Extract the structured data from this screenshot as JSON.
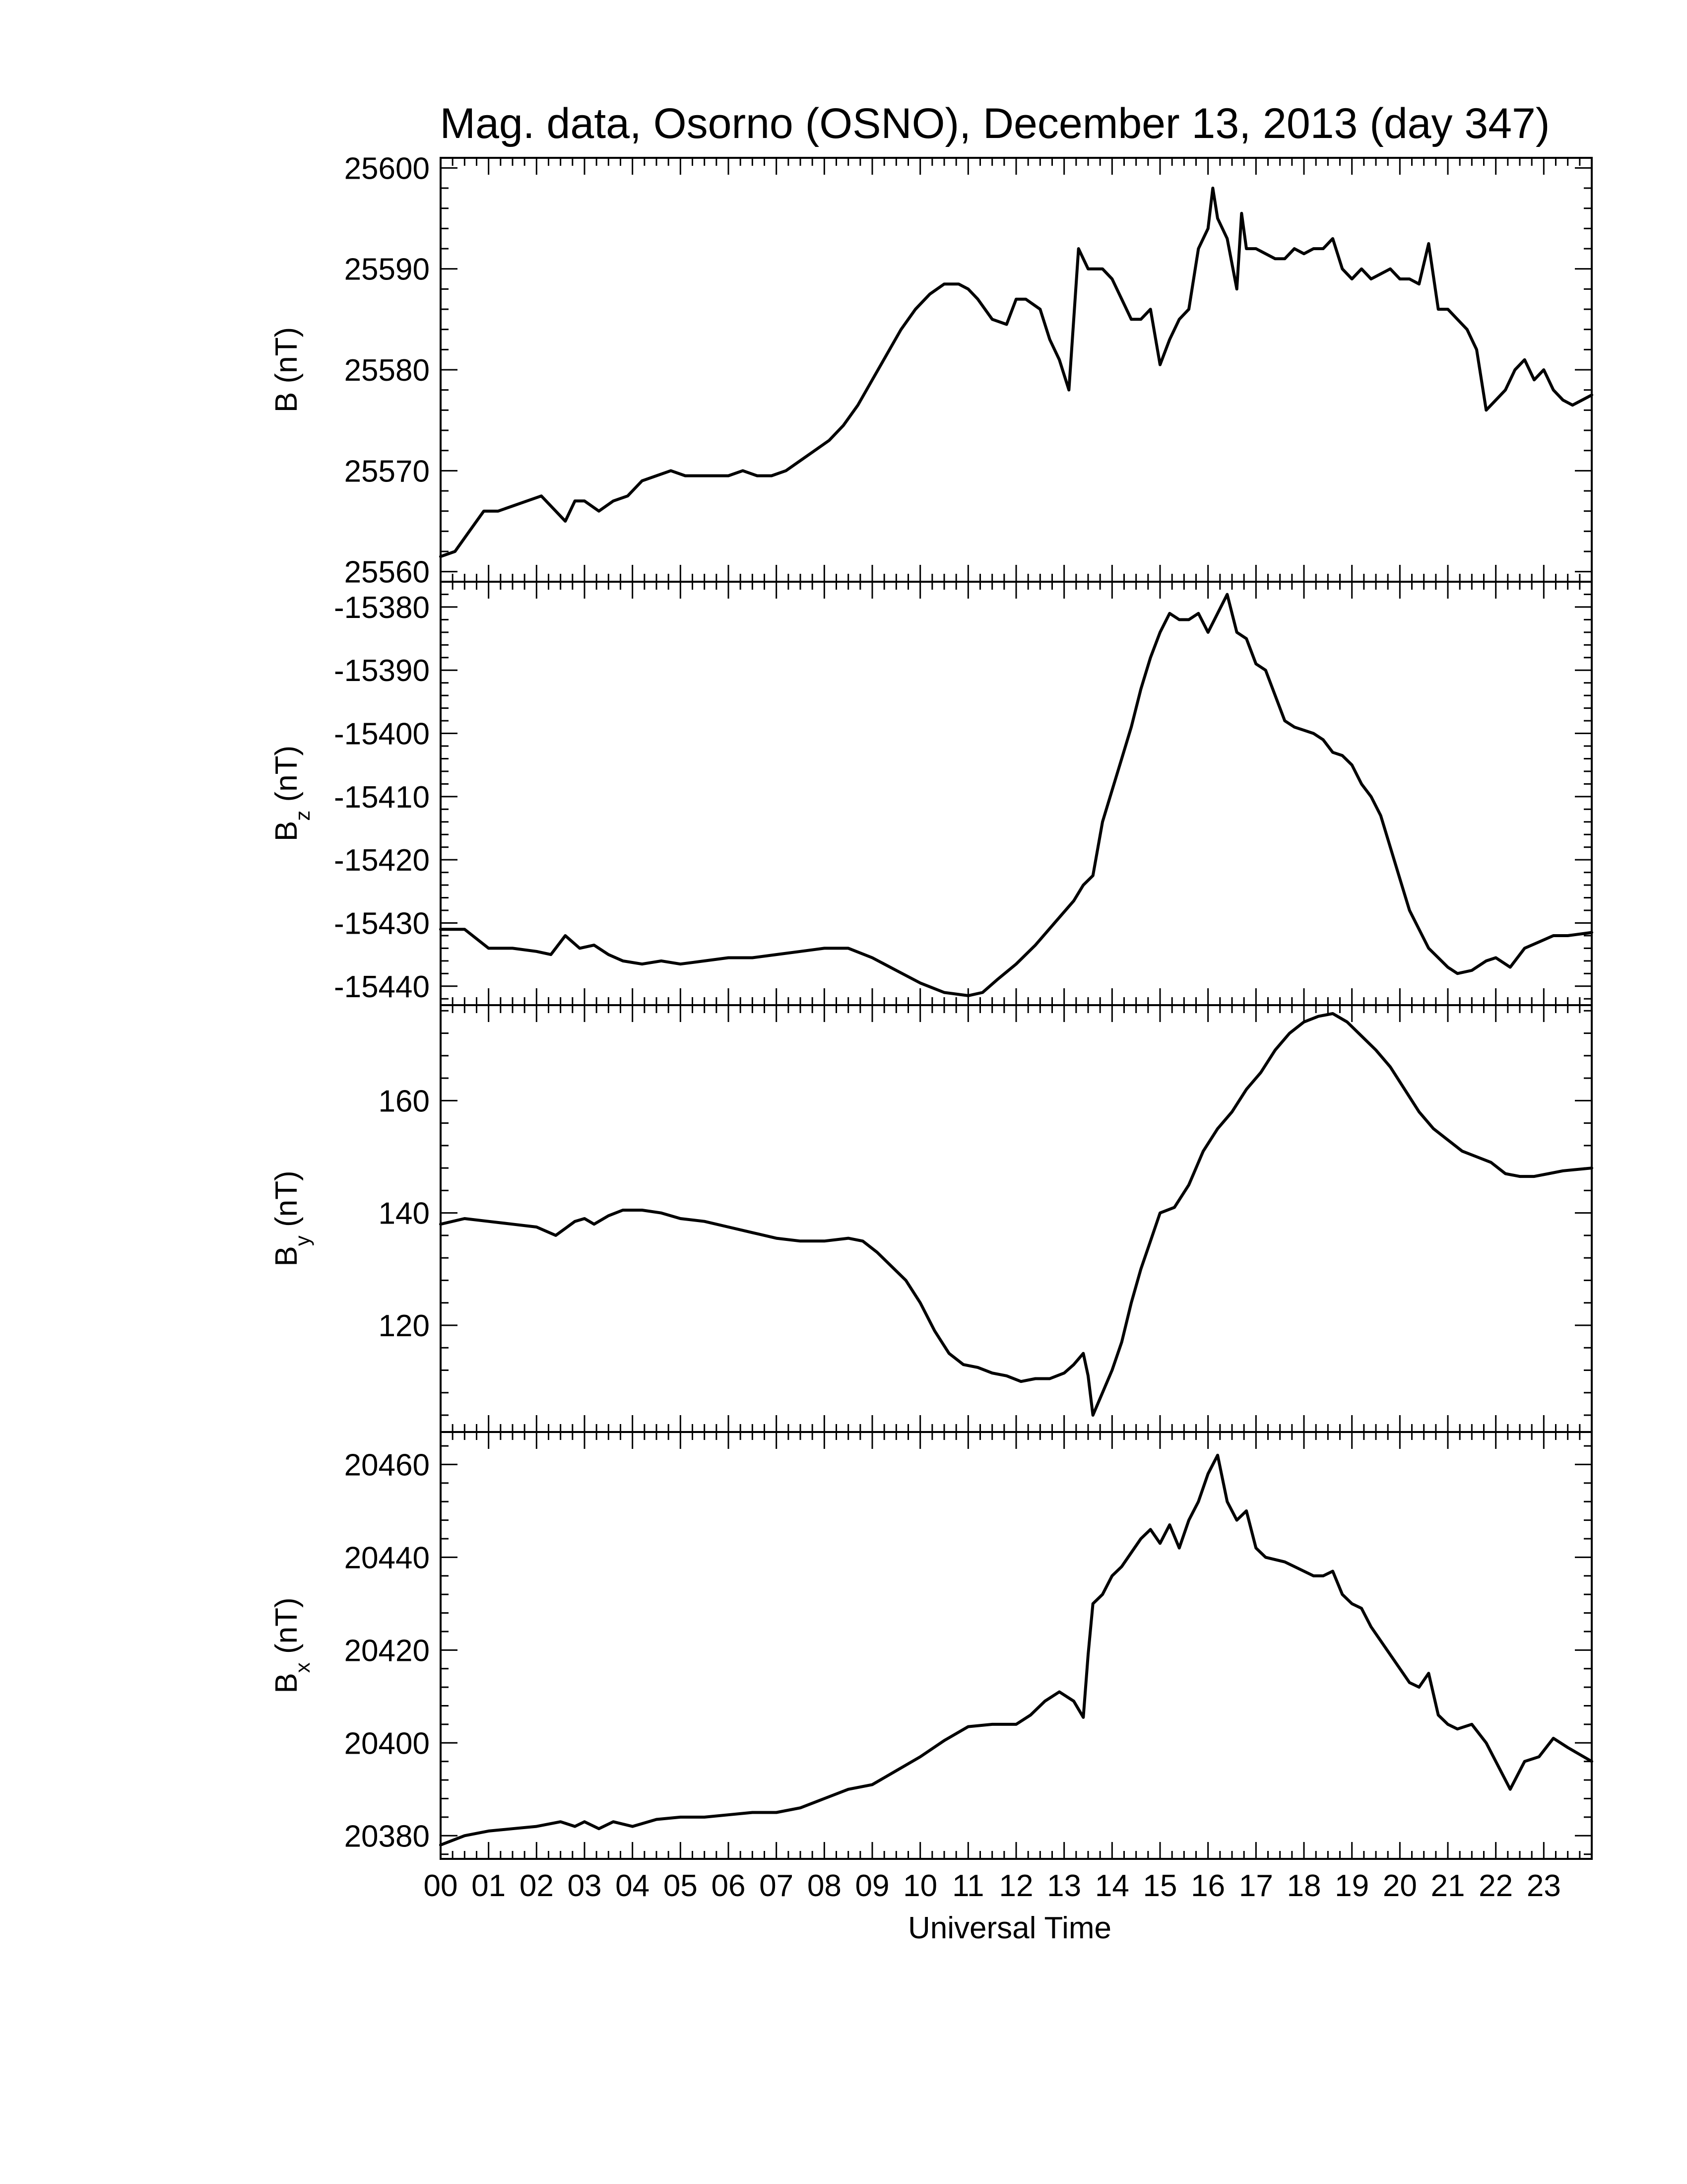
{
  "chart_data": {
    "type": "line",
    "title": "Mag. data, Osorno (OSNO), December 13, 2013 (day 347)",
    "xlabel": "Universal Time",
    "xlim": [
      0,
      24
    ],
    "x_tick_labels": [
      "00",
      "01",
      "02",
      "03",
      "04",
      "05",
      "06",
      "07",
      "08",
      "09",
      "10",
      "11",
      "12",
      "13",
      "14",
      "15",
      "16",
      "17",
      "18",
      "19",
      "20",
      "21",
      "22",
      "23"
    ],
    "colors": {
      "trace": "#000000",
      "background": "#ffffff"
    },
    "panels": [
      {
        "id": "b",
        "ylabel_main": "B",
        "ylabel_sub": "",
        "ylabel_unit": "(nT)",
        "ylim": [
          25559,
          25601
        ],
        "yticks": [
          25560,
          25570,
          25580,
          25590,
          25600
        ],
        "ytick_labels": [
          "25560",
          "25570",
          "25580",
          "25590",
          "25600"
        ],
        "series": [
          {
            "x": [
              0.0,
              0.3,
              0.6,
              0.9,
              1.2,
              1.5,
              1.8,
              2.1,
              2.4,
              2.6,
              2.8,
              3.0,
              3.3,
              3.6,
              3.9,
              4.2,
              4.5,
              4.8,
              5.1,
              5.4,
              5.7,
              6.0,
              6.3,
              6.6,
              6.9,
              7.2,
              7.5,
              7.8,
              8.1,
              8.4,
              8.7,
              9.0,
              9.3,
              9.6,
              9.9,
              10.2,
              10.5,
              10.8,
              11.0,
              11.2,
              11.5,
              11.8,
              12.0,
              12.2,
              12.5,
              12.7,
              12.9,
              13.1,
              13.3,
              13.4,
              13.5,
              13.6,
              13.8,
              14.0,
              14.2,
              14.4,
              14.6,
              14.8,
              15.0,
              15.2,
              15.4,
              15.6,
              15.8,
              16.0,
              16.1,
              16.2,
              16.4,
              16.6,
              16.7,
              16.8,
              17.0,
              17.2,
              17.4,
              17.6,
              17.8,
              18.0,
              18.2,
              18.4,
              18.6,
              18.8,
              19.0,
              19.2,
              19.4,
              19.6,
              19.8,
              20.0,
              20.2,
              20.4,
              20.6,
              20.8,
              21.0,
              21.2,
              21.4,
              21.6,
              21.8,
              22.0,
              22.2,
              22.4,
              22.6,
              22.8,
              23.0,
              23.2,
              23.4,
              23.6,
              24.0
            ],
            "y": [
              25561.5,
              25562,
              25564,
              25566,
              25566,
              25566.5,
              25567,
              25567.5,
              25566,
              25565,
              25567,
              25567,
              25566,
              25567,
              25567.5,
              25569,
              25569.5,
              25570,
              25569.5,
              25569.5,
              25569.5,
              25569.5,
              25570,
              25569.5,
              25569.5,
              25570,
              25571,
              25572,
              25573,
              25574.5,
              25576.5,
              25579,
              25581.5,
              25584,
              25586,
              25587.5,
              25588.5,
              25588.5,
              25588,
              25587,
              25585,
              25584.5,
              25587,
              25587,
              25586,
              25583,
              25581,
              25578,
              25592,
              25591,
              25590,
              25590,
              25590,
              25589,
              25587,
              25585,
              25585,
              25586,
              25580.5,
              25583,
              25585,
              25586,
              25592,
              25594,
              25598,
              25595,
              25593,
              25588,
              25595.5,
              25592,
              25592,
              25591.5,
              25591,
              25591,
              25592,
              25591.5,
              25592,
              25592,
              25593,
              25590,
              25589,
              25590,
              25589,
              25589.5,
              25590,
              25589,
              25589,
              25588.5,
              25592.5,
              25586,
              25586,
              25585,
              25584,
              25582,
              25576,
              25577,
              25578,
              25580,
              25581,
              25579,
              25580,
              25578,
              25577,
              25576.5,
              25577.5
            ]
          }
        ]
      },
      {
        "id": "bz",
        "ylabel_main": "B",
        "ylabel_sub": "z",
        "ylabel_unit": "(nT)",
        "ylim": [
          -15443,
          -15376
        ],
        "yticks": [
          -15440,
          -15430,
          -15420,
          -15410,
          -15400,
          -15390,
          -15380
        ],
        "ytick_labels": [
          "-15440",
          "-15430",
          "-15420",
          "-15410",
          "-15400",
          "-15390",
          "-15380"
        ],
        "series": [
          {
            "x": [
              0.0,
              0.5,
              1.0,
              1.5,
              2.0,
              2.3,
              2.6,
              2.9,
              3.2,
              3.5,
              3.8,
              4.2,
              4.6,
              5.0,
              5.5,
              6.0,
              6.5,
              7.0,
              7.5,
              8.0,
              8.5,
              9.0,
              9.5,
              10.0,
              10.5,
              11.0,
              11.3,
              11.6,
              12.0,
              12.4,
              12.8,
              13.2,
              13.4,
              13.6,
              13.8,
              14.0,
              14.2,
              14.4,
              14.6,
              14.8,
              15.0,
              15.2,
              15.4,
              15.6,
              15.8,
              16.0,
              16.2,
              16.4,
              16.6,
              16.8,
              17.0,
              17.2,
              17.4,
              17.6,
              17.8,
              18.0,
              18.2,
              18.4,
              18.6,
              18.8,
              19.0,
              19.2,
              19.4,
              19.6,
              19.8,
              20.0,
              20.2,
              20.4,
              20.6,
              20.8,
              21.0,
              21.2,
              21.5,
              21.8,
              22.0,
              22.3,
              22.6,
              22.9,
              23.2,
              23.5,
              24.0
            ],
            "y": [
              -15431,
              -15431,
              -15434,
              -15434,
              -15434.5,
              -15435,
              -15432,
              -15434,
              -15433.5,
              -15435,
              -15436,
              -15436.5,
              -15436,
              -15436.5,
              -15436,
              -15435.5,
              -15435.5,
              -15435,
              -15434.5,
              -15434,
              -15434,
              -15435.5,
              -15437.5,
              -15439.5,
              -15441,
              -15441.5,
              -15441,
              -15439,
              -15436.5,
              -15433.5,
              -15430,
              -15426.5,
              -15424,
              -15422.5,
              -15414,
              -15409,
              -15404,
              -15399,
              -15393,
              -15388,
              -15384,
              -15381,
              -15382,
              -15382,
              -15381,
              -15384,
              -15381,
              -15378,
              -15384,
              -15385,
              -15389,
              -15390,
              -15394,
              -15398,
              -15399,
              -15399.5,
              -15400,
              -15401,
              -15403,
              -15403.5,
              -15405,
              -15408,
              -15410,
              -15413,
              -15418,
              -15423,
              -15428,
              -15431,
              -15434,
              -15435.5,
              -15437,
              -15438,
              -15437.5,
              -15436,
              -15435.5,
              -15437,
              -15434,
              -15433,
              -15432,
              -15432,
              -15431.5
            ]
          }
        ]
      },
      {
        "id": "by",
        "ylabel_main": "B",
        "ylabel_sub": "y",
        "ylabel_unit": "(nT)",
        "ylim": [
          101,
          177
        ],
        "yticks": [
          120,
          140,
          160
        ],
        "ytick_labels": [
          "120",
          "140",
          "160"
        ],
        "series": [
          {
            "x": [
              0.0,
              0.5,
              1.0,
              1.5,
              2.0,
              2.4,
              2.8,
              3.0,
              3.2,
              3.5,
              3.8,
              4.2,
              4.6,
              5.0,
              5.5,
              6.0,
              6.5,
              7.0,
              7.5,
              8.0,
              8.5,
              8.8,
              9.1,
              9.4,
              9.7,
              10.0,
              10.3,
              10.6,
              10.9,
              11.2,
              11.5,
              11.8,
              12.1,
              12.4,
              12.7,
              13.0,
              13.2,
              13.4,
              13.5,
              13.6,
              13.8,
              14.0,
              14.2,
              14.4,
              14.6,
              14.8,
              15.0,
              15.3,
              15.6,
              15.9,
              16.2,
              16.5,
              16.8,
              17.1,
              17.4,
              17.7,
              18.0,
              18.3,
              18.6,
              18.9,
              19.2,
              19.5,
              19.8,
              20.1,
              20.4,
              20.7,
              21.0,
              21.3,
              21.6,
              21.9,
              22.2,
              22.5,
              22.8,
              23.1,
              23.4,
              24.0
            ],
            "y": [
              138,
              139,
              138.5,
              138,
              137.5,
              136,
              138.5,
              139,
              138,
              139.5,
              140.5,
              140.5,
              140,
              139,
              138.5,
              137.5,
              136.5,
              135.5,
              135,
              135,
              135.5,
              135,
              133,
              130.5,
              128,
              124,
              119,
              115,
              113,
              112.5,
              111.5,
              111,
              110,
              110.5,
              110.5,
              111.5,
              113,
              115,
              111,
              104,
              108,
              112,
              117,
              124,
              130,
              135,
              140,
              141,
              145,
              151,
              155,
              158,
              162,
              165,
              169,
              172,
              174,
              175,
              175.5,
              174,
              171.5,
              169,
              166,
              162,
              158,
              155,
              153,
              151,
              150,
              149,
              147,
              146.5,
              146.5,
              147,
              147.5,
              148
            ]
          }
        ]
      },
      {
        "id": "bx",
        "ylabel_main": "B",
        "ylabel_sub": "x",
        "ylabel_unit": "(nT)",
        "ylim": [
          20375,
          20467
        ],
        "yticks": [
          20380,
          20400,
          20420,
          20440,
          20460
        ],
        "ytick_labels": [
          "20380",
          "20400",
          "20420",
          "20440",
          "20460"
        ],
        "series": [
          {
            "x": [
              0.0,
              0.5,
              1.0,
              1.5,
              2.0,
              2.5,
              2.8,
              3.0,
              3.3,
              3.6,
              4.0,
              4.5,
              5.0,
              5.5,
              6.0,
              6.5,
              7.0,
              7.5,
              8.0,
              8.5,
              9.0,
              9.5,
              10.0,
              10.5,
              11.0,
              11.5,
              12.0,
              12.3,
              12.6,
              12.9,
              13.2,
              13.4,
              13.5,
              13.6,
              13.8,
              14.0,
              14.2,
              14.4,
              14.6,
              14.8,
              15.0,
              15.2,
              15.4,
              15.6,
              15.8,
              16.0,
              16.2,
              16.4,
              16.6,
              16.8,
              17.0,
              17.2,
              17.4,
              17.6,
              17.8,
              18.0,
              18.2,
              18.4,
              18.6,
              18.8,
              19.0,
              19.2,
              19.4,
              19.6,
              19.8,
              20.0,
              20.2,
              20.4,
              20.6,
              20.8,
              21.0,
              21.2,
              21.5,
              21.8,
              22.0,
              22.3,
              22.6,
              22.9,
              23.2,
              23.5,
              24.0
            ],
            "y": [
              20378,
              20380,
              20381,
              20381.5,
              20382,
              20383,
              20382,
              20383,
              20381.5,
              20383,
              20382,
              20383.5,
              20384,
              20384,
              20384.5,
              20385,
              20385,
              20386,
              20388,
              20390,
              20391,
              20394,
              20397,
              20400.5,
              20403.5,
              20404,
              20404,
              20406,
              20409,
              20411,
              20409,
              20405.5,
              20419,
              20430,
              20432,
              20436,
              20438,
              20441,
              20444,
              20446,
              20443,
              20447,
              20442,
              20448,
              20452,
              20458,
              20462,
              20452,
              20448,
              20450,
              20442,
              20440,
              20439.5,
              20439,
              20438,
              20437,
              20436,
              20436,
              20437,
              20432,
              20430,
              20429,
              20425,
              20422,
              20419,
              20416,
              20413,
              20412,
              20415,
              20406,
              20404,
              20403,
              20404,
              20400,
              20396,
              20390,
              20396,
              20397,
              20401,
              20399,
              20396
            ]
          }
        ]
      }
    ]
  }
}
